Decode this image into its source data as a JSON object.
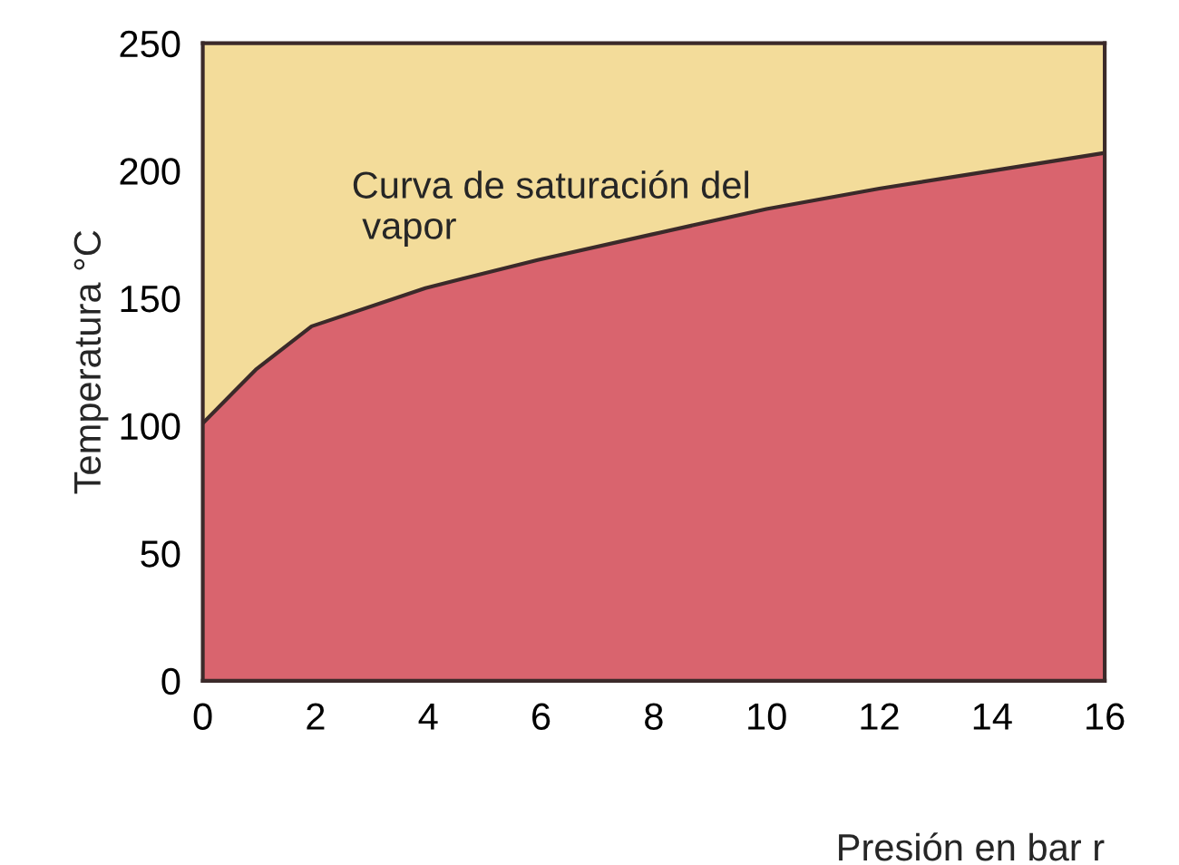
{
  "chart_data": {
    "type": "area",
    "xlabel": "Presión en bar r",
    "ylabel": "Temperatura °C",
    "stacked": true,
    "x": [
      0,
      0.94,
      1.93,
      3.95,
      5.94,
      7.96,
      10,
      12,
      14,
      16
    ],
    "series": [
      {
        "color": "#d9646e",
        "values": [
          101,
          122,
          139,
          154,
          165,
          175,
          185,
          193,
          200,
          207
        ]
      },
      {
        "color": "#f3dc9a",
        "values": [
          149,
          128,
          111,
          96,
          85,
          75,
          65,
          57,
          50,
          43
        ]
      }
    ],
    "annotations": [
      "Curva de saturación del\n vapor"
    ],
    "xlim": [
      0,
      16
    ],
    "xticks": [
      0,
      2,
      4,
      6,
      8,
      10,
      12,
      14,
      16
    ],
    "ylim": [
      0,
      250
    ],
    "yticks": [
      0,
      50,
      100,
      150,
      200,
      250
    ]
  }
}
